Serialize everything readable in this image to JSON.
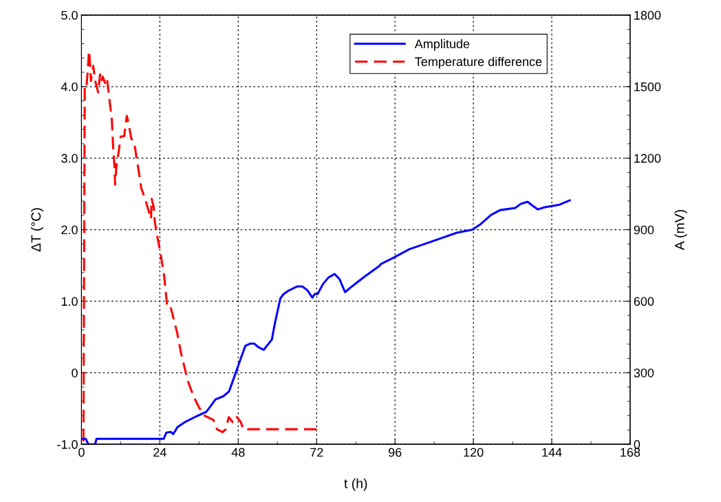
{
  "chart_data": {
    "type": "line",
    "xlabel": "t (h)",
    "ylabel": "ΔT (°C)",
    "y2label": "A (mV)",
    "xlim": [
      0,
      168
    ],
    "xticks": [
      0,
      24,
      48,
      72,
      96,
      120,
      144,
      168
    ],
    "ylim": [
      -1.0,
      5.0
    ],
    "yticks": [
      {
        "value": -1.0,
        "label": "-1.0"
      },
      0,
      {
        "value": 1.0,
        "label": "1.0"
      },
      {
        "value": 2.0,
        "label": "2.0"
      },
      {
        "value": 3.0,
        "label": "3.0"
      },
      {
        "value": 4.0,
        "label": "4.0"
      },
      {
        "value": 5.0,
        "label": "5.0"
      }
    ],
    "y2lim": [
      0,
      1800
    ],
    "y2ticks": [
      0,
      300,
      600,
      900,
      1200,
      1500,
      1800
    ],
    "grid": true,
    "legend": "top right",
    "series": [
      {
        "name": "Amplitude",
        "color": "#0000ff",
        "axis": "y2",
        "line_style": "solid",
        "x": [
          0,
          1.3,
          2.1,
          4.2,
          4.6,
          25.2,
          26.0,
          27.3,
          28.1,
          29.4,
          31.9,
          35.0,
          38.2,
          39.5,
          41.0,
          43.5,
          45.2,
          46.2,
          47.7,
          49.2,
          50.2,
          51.6,
          52.9,
          54.2,
          55.8,
          58.3,
          59.2,
          60.9,
          61.9,
          63.5,
          66.1,
          67.6,
          69.1,
          70.7,
          71.4,
          72.3,
          74.0,
          75.6,
          77.5,
          79.0,
          80.7,
          82.8,
          86.6,
          91.2,
          91.8,
          95.6,
          100.4,
          107.6,
          114.9,
          119.7,
          122.3,
          125.4,
          128.2,
          132.8,
          134.5,
          136.6,
          138.0,
          139.7,
          141.8,
          146.4,
          149.5
        ],
        "values": [
          23,
          23,
          0,
          0,
          23,
          23,
          49,
          52,
          43,
          72,
          95,
          116,
          136,
          159,
          188,
          202,
          222,
          260,
          318,
          376,
          413,
          422,
          422,
          407,
          396,
          439,
          506,
          612,
          630,
          645,
          662,
          662,
          647,
          615,
          630,
          630,
          673,
          699,
          714,
          693,
          638,
          662,
          702,
          748,
          757,
          783,
          818,
          852,
          887,
          900,
          924,
          962,
          982,
          991,
          1008,
          1017,
          1002,
          985,
          994,
          1005,
          1023
        ]
      },
      {
        "name": "Temperature difference",
        "color": "#ff0000",
        "line_style": "dashed",
        "x": [
          0,
          0.6,
          1.0,
          1.5,
          1.9,
          2.3,
          2.5,
          2.9,
          3.6,
          4.2,
          5.1,
          5.7,
          6.1,
          6.5,
          7.2,
          7.8,
          8.4,
          9.3,
          9.7,
          10.1,
          10.3,
          10.7,
          11.4,
          12.0,
          13.1,
          13.5,
          13.9,
          14.5,
          15.2,
          16.2,
          16.8,
          17.7,
          18.3,
          19.4,
          20.2,
          21.3,
          21.5,
          22.1,
          22.5,
          23.2,
          24.2,
          25.3,
          26.3,
          27.4,
          29.3,
          30.5,
          32.6,
          34.5,
          36.2,
          37.7,
          40.4,
          41.5,
          43.2,
          44.2,
          45.1,
          46.3,
          47.4,
          48.8,
          49.5,
          72.0
        ],
        "values": [
          -1.0,
          -1.0,
          4.0,
          3.98,
          4.21,
          4.5,
          4.4,
          4.08,
          4.29,
          4.08,
          3.92,
          4.17,
          4.07,
          4.14,
          4.05,
          4.12,
          3.88,
          3.54,
          3.15,
          2.89,
          2.63,
          2.89,
          3.09,
          3.3,
          3.31,
          3.47,
          3.59,
          3.47,
          3.28,
          3.21,
          3.02,
          2.77,
          2.58,
          2.44,
          2.32,
          2.15,
          2.43,
          2.32,
          2.1,
          1.91,
          1.67,
          1.36,
          0.9,
          0.9,
          0.56,
          0.27,
          -0.12,
          -0.35,
          -0.5,
          -0.6,
          -0.66,
          -0.79,
          -0.83,
          -0.79,
          -0.62,
          -0.69,
          -0.61,
          -0.69,
          -0.79,
          -0.79
        ]
      }
    ]
  }
}
